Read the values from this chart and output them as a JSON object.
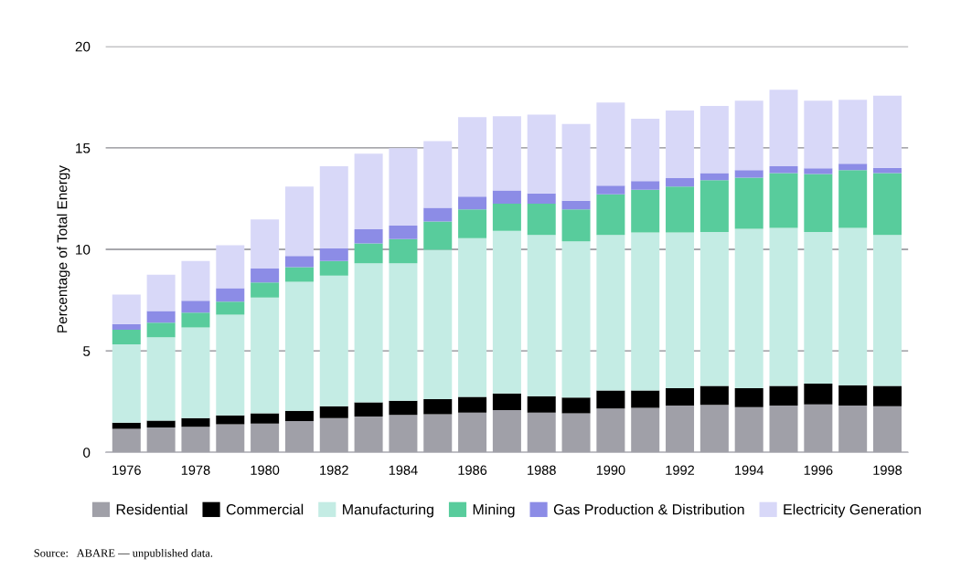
{
  "chart_data": {
    "type": "bar",
    "stacked": true,
    "ylabel": "Percentage of Total Energy",
    "categories": [
      "1976",
      null,
      "1978",
      null,
      "1980",
      null,
      "1982",
      null,
      "1984",
      null,
      "1986",
      null,
      "1988",
      null,
      "1990",
      null,
      "1992",
      null,
      "1994",
      null,
      "1996",
      null,
      "1998"
    ],
    "series": [
      {
        "name": "Residential",
        "color": "#a0a0a8",
        "values": [
          1.16,
          1.23,
          1.26,
          1.39,
          1.42,
          1.54,
          1.69,
          1.77,
          1.85,
          1.88,
          1.96,
          2.08,
          1.96,
          1.93,
          2.16,
          2.2,
          2.31,
          2.34,
          2.23,
          2.31,
          2.36,
          2.31,
          2.28
        ]
      },
      {
        "name": "Commercial",
        "color": "#000000",
        "values": [
          0.3,
          0.34,
          0.43,
          0.43,
          0.51,
          0.51,
          0.59,
          0.7,
          0.69,
          0.74,
          0.78,
          0.82,
          0.81,
          0.77,
          0.89,
          0.85,
          0.85,
          0.93,
          0.93,
          0.97,
          1.03,
          1.0,
          1.0
        ]
      },
      {
        "name": "Manufacturing",
        "color": "#c4ece4",
        "values": [
          3.86,
          4.1,
          4.47,
          4.96,
          5.7,
          6.35,
          6.43,
          6.85,
          6.78,
          7.36,
          7.81,
          8.01,
          7.94,
          7.7,
          7.66,
          7.78,
          7.67,
          7.59,
          7.86,
          7.78,
          7.47,
          7.75,
          7.43
        ]
      },
      {
        "name": "Mining",
        "color": "#58cc9c",
        "values": [
          0.72,
          0.72,
          0.73,
          0.65,
          0.74,
          0.72,
          0.72,
          0.97,
          1.19,
          1.39,
          1.42,
          1.34,
          1.54,
          1.57,
          2.0,
          2.11,
          2.27,
          2.55,
          2.51,
          2.7,
          2.85,
          2.85,
          3.05
        ]
      },
      {
        "name": "Gas Production & Distribution",
        "color": "#8c8ce6",
        "values": [
          0.28,
          0.57,
          0.58,
          0.66,
          0.69,
          0.56,
          0.62,
          0.7,
          0.66,
          0.68,
          0.63,
          0.65,
          0.51,
          0.43,
          0.43,
          0.43,
          0.41,
          0.35,
          0.37,
          0.34,
          0.28,
          0.31,
          0.26
        ]
      },
      {
        "name": "Electricity Generation",
        "color": "#d8d8f8",
        "values": [
          1.46,
          1.79,
          1.96,
          2.11,
          2.42,
          3.42,
          4.05,
          3.72,
          3.81,
          3.28,
          3.92,
          3.66,
          3.88,
          3.78,
          4.09,
          3.07,
          3.33,
          3.31,
          3.43,
          3.77,
          3.34,
          3.15,
          3.55
        ]
      }
    ],
    "ylim": [
      0,
      20
    ],
    "yticks": [
      0,
      5,
      10,
      15,
      20
    ],
    "grid": "y",
    "legend": "bottom",
    "annotations": [
      "Source:   ABARE — unpublished data."
    ]
  }
}
